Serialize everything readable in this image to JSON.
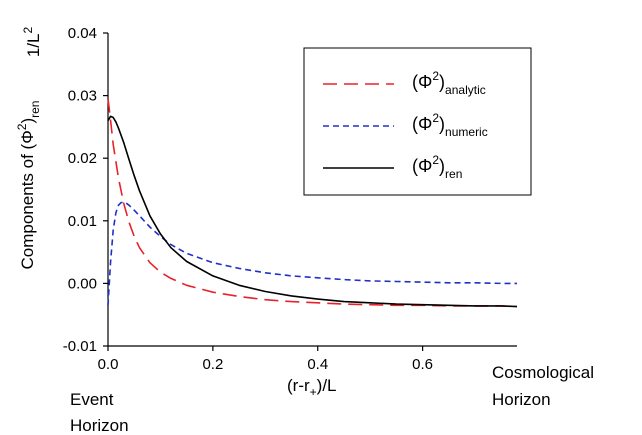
{
  "chart_data": {
    "type": "line",
    "title": "",
    "xlabel": "(r-r+)/L",
    "ylabel": "Components of (Φ²)ren",
    "y_unit": "1/L²",
    "xlim": [
      0.0,
      0.78
    ],
    "ylim": [
      -0.01,
      0.04
    ],
    "x_ticks": [
      "0.0",
      "0.2",
      "0.4",
      "0.6"
    ],
    "y_ticks": [
      "-0.01",
      "0.00",
      "0.01",
      "0.02",
      "0.03",
      "0.04"
    ],
    "annotations": {
      "left": [
        "Event",
        "Horizon"
      ],
      "right": [
        "Cosmological",
        "Horizon"
      ]
    },
    "legend_position": "top-right",
    "series": [
      {
        "name": "(Φ²)analytic",
        "name_base": "(Φ",
        "name_sup": "2",
        "name_close": ")",
        "name_sub": "analytic",
        "color": "#e8222a",
        "dash": "14,7",
        "x": [
          0.0,
          0.005,
          0.01,
          0.02,
          0.03,
          0.04,
          0.05,
          0.06,
          0.08,
          0.1,
          0.12,
          0.15,
          0.2,
          0.25,
          0.3,
          0.35,
          0.4,
          0.45,
          0.5,
          0.55,
          0.6,
          0.65,
          0.7,
          0.75,
          0.78
        ],
        "y": [
          0.0295,
          0.026,
          0.0222,
          0.0168,
          0.0128,
          0.0098,
          0.0075,
          0.0057,
          0.0033,
          0.0018,
          0.0008,
          -0.0003,
          -0.0014,
          -0.0021,
          -0.0026,
          -0.0029,
          -0.0031,
          -0.0033,
          -0.0034,
          -0.0035,
          -0.0035,
          -0.0036,
          -0.0036,
          -0.0036,
          -0.0037
        ]
      },
      {
        "name": "(Φ²)numeric",
        "name_base": "(Φ",
        "name_sup": "2",
        "name_close": ")",
        "name_sub": "numeric",
        "color": "#2130c8",
        "dash": "6,4",
        "x": [
          0.0,
          0.005,
          0.01,
          0.015,
          0.02,
          0.025,
          0.03,
          0.035,
          0.04,
          0.05,
          0.06,
          0.08,
          0.1,
          0.12,
          0.15,
          0.2,
          0.25,
          0.3,
          0.35,
          0.4,
          0.45,
          0.5,
          0.55,
          0.6,
          0.65,
          0.7,
          0.75,
          0.78
        ],
        "y": [
          -0.0035,
          0.0035,
          0.0085,
          0.0113,
          0.0125,
          0.0129,
          0.013,
          0.0128,
          0.0125,
          0.0117,
          0.0108,
          0.009,
          0.0075,
          0.0062,
          0.0048,
          0.0033,
          0.0024,
          0.0017,
          0.0012,
          0.0009,
          0.0006,
          0.0004,
          0.0003,
          0.0002,
          0.0001,
          0.0001,
          0.0,
          0.0
        ]
      },
      {
        "name": "(Φ²)ren",
        "name_base": "(Φ",
        "name_sup": "2",
        "name_close": ")",
        "name_sub": "ren",
        "color": "#000000",
        "dash": "",
        "x": [
          0.0,
          0.005,
          0.01,
          0.015,
          0.02,
          0.03,
          0.04,
          0.05,
          0.06,
          0.08,
          0.1,
          0.12,
          0.15,
          0.2,
          0.25,
          0.3,
          0.35,
          0.4,
          0.45,
          0.5,
          0.55,
          0.6,
          0.65,
          0.7,
          0.75,
          0.78
        ],
        "y": [
          0.026,
          0.0267,
          0.0265,
          0.0258,
          0.0248,
          0.0225,
          0.0198,
          0.0172,
          0.0148,
          0.0108,
          0.0079,
          0.0057,
          0.0035,
          0.0012,
          -0.0003,
          -0.0013,
          -0.002,
          -0.0025,
          -0.0029,
          -0.0031,
          -0.0033,
          -0.0034,
          -0.0035,
          -0.0036,
          -0.0036,
          -0.0037
        ]
      }
    ]
  }
}
